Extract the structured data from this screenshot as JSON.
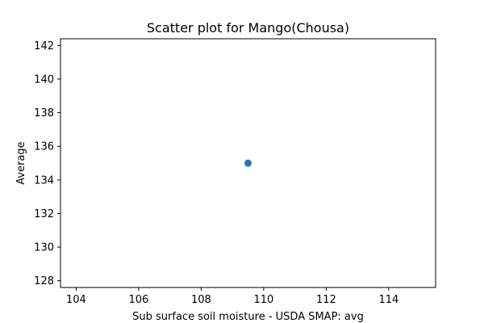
{
  "chart_data": {
    "type": "scatter",
    "title": "Scatter plot for Mango(Chousa)",
    "xlabel": "Sub surface soil moisture - USDA SMAP: avg",
    "ylabel": "Average",
    "xlim": [
      103.5,
      115.5
    ],
    "ylim": [
      127.6,
      142.4
    ],
    "xticks": [
      104,
      106,
      108,
      110,
      112,
      114
    ],
    "yticks": [
      128,
      130,
      132,
      134,
      136,
      138,
      140,
      142
    ],
    "grid": false,
    "points": [
      {
        "x": 109.5,
        "y": 135
      }
    ],
    "point_color": "#1f77b4"
  }
}
